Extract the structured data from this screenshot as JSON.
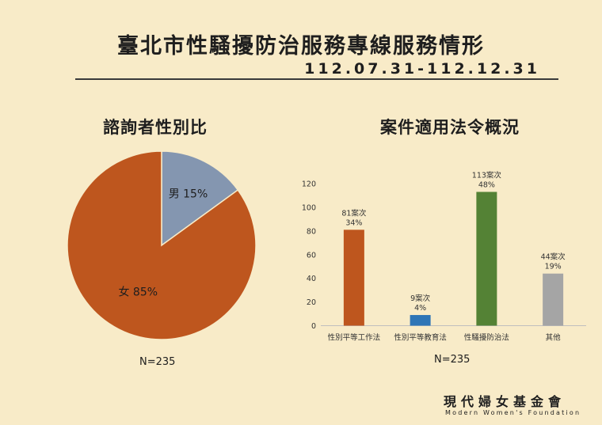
{
  "header": {
    "title": "臺北市性騷擾防治服務專線服務情形",
    "period": "112.07.31-112.12.31"
  },
  "logo": {
    "name_cn": "現代婦女基金會",
    "name_en": "Modern Women's Foundation"
  },
  "chart_data": [
    {
      "type": "pie",
      "title": "諮詢者性別比",
      "slices": [
        {
          "label": "男",
          "value": 15,
          "display": "15%",
          "color": "#8496b0"
        },
        {
          "label": "女",
          "value": 85,
          "display": "85%",
          "color": "#be561e"
        }
      ],
      "note": "N=235"
    },
    {
      "type": "bar",
      "title": "案件適用法令概況",
      "categories": [
        "性別平等工作法",
        "性別平等教育法",
        "性騷擾防治法",
        "其他"
      ],
      "values": [
        81,
        9,
        113,
        44
      ],
      "value_labels": [
        "81案次",
        "9案次",
        "113案次",
        "44案次"
      ],
      "percent_labels": [
        "34%",
        "4%",
        "48%",
        "19%"
      ],
      "colors": [
        "#be561e",
        "#2e75b6",
        "#548235",
        "#a5a5a5"
      ],
      "ylim": [
        0,
        120
      ],
      "yticks": [
        0,
        20,
        40,
        60,
        80,
        100,
        120
      ],
      "grid": false,
      "legend": "none",
      "note": "N=235"
    }
  ]
}
